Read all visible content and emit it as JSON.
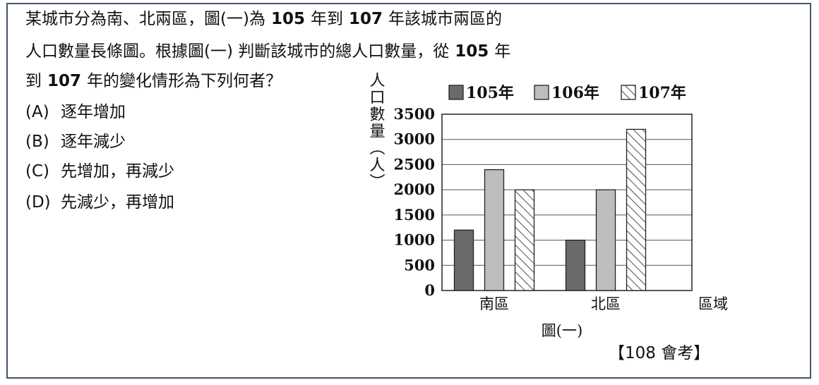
{
  "question": {
    "line1_a": "某城市分為南、北兩區，圖(一)為",
    "line1_y1": "105",
    "line1_b": "年到",
    "line1_y2": "107",
    "line1_c": "年該城市兩區的",
    "line2_a": "人口數量長條圖。根據圖(一) 判斷該城市的總人口數量，從",
    "line2_y1": "105",
    "line2_b": "年",
    "line3_a": "到",
    "line3_y2": "107",
    "line3_b": "年的變化情形為下列何者？"
  },
  "options": [
    {
      "letter": "(A)",
      "text": "逐年增加"
    },
    {
      "letter": "(B)",
      "text": "逐年減少"
    },
    {
      "letter": "(C)",
      "text": "先增加，再減少"
    },
    {
      "letter": "(D)",
      "text": "先減少，再增加"
    }
  ],
  "source": "【108 會考】",
  "chart_data": {
    "type": "bar",
    "title": "",
    "caption": "圖(一)",
    "xlabel": "區域",
    "ylabel": "人口數量（人）",
    "categories": [
      "南區",
      "北區"
    ],
    "series": [
      {
        "name": "105年",
        "values": [
          1200,
          1000
        ],
        "color": "#6a6a6a",
        "pattern": "solid"
      },
      {
        "name": "106年",
        "values": [
          2400,
          2000
        ],
        "color": "#bdbdbd",
        "pattern": "solid"
      },
      {
        "name": "107年",
        "values": [
          2000,
          3200
        ],
        "color": "#ffffff",
        "pattern": "hatch"
      }
    ],
    "ylim": [
      0,
      3500
    ],
    "yticks": [
      "0",
      "500",
      "1000",
      "1500",
      "2000",
      "2500",
      "3000",
      "3500"
    ],
    "grid": true,
    "legend_position": "top"
  }
}
